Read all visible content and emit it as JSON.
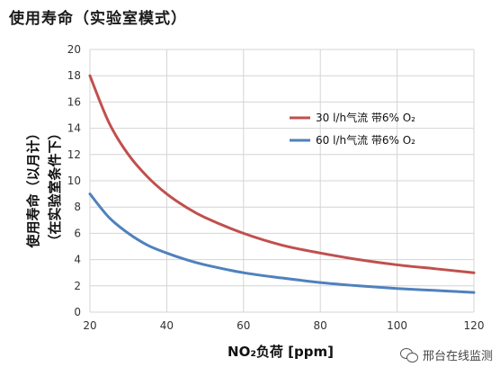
{
  "title": "使用寿命（实验室模式）",
  "watermark": "邢台在线监测",
  "colors": {
    "series1": "#c0504d",
    "series2": "#4f81bd",
    "grid": "#d4d4d4"
  },
  "chart_data": {
    "type": "line",
    "title": "",
    "xlabel": "NO₂负荷  [ppm]",
    "ylabel_line1": "使用寿命（以月计）",
    "ylabel_line2": "（在实验室条件下）",
    "xlim": [
      20,
      120
    ],
    "ylim": [
      0,
      20
    ],
    "xticks": [
      20,
      40,
      60,
      80,
      100,
      120
    ],
    "yticks": [
      0,
      2,
      4,
      6,
      8,
      10,
      12,
      14,
      16,
      18,
      20
    ],
    "grid": true,
    "legend_position": "right",
    "series": [
      {
        "name": "30 l/h气流 带6% O₂",
        "color": "#c0504d",
        "x": [
          20,
          25,
          30,
          35,
          40,
          45,
          50,
          60,
          70,
          80,
          90,
          100,
          110,
          120
        ],
        "y": [
          18.0,
          14.4,
          12.0,
          10.3,
          9.0,
          8.0,
          7.2,
          6.0,
          5.1,
          4.5,
          4.0,
          3.6,
          3.3,
          3.0
        ]
      },
      {
        "name": "60 l/h气流 带6% O₂",
        "color": "#4f81bd",
        "x": [
          20,
          25,
          30,
          35,
          40,
          45,
          50,
          60,
          70,
          80,
          90,
          100,
          110,
          120
        ],
        "y": [
          9.0,
          7.2,
          6.0,
          5.1,
          4.5,
          4.0,
          3.6,
          3.0,
          2.6,
          2.25,
          2.0,
          1.8,
          1.65,
          1.5
        ]
      }
    ]
  }
}
